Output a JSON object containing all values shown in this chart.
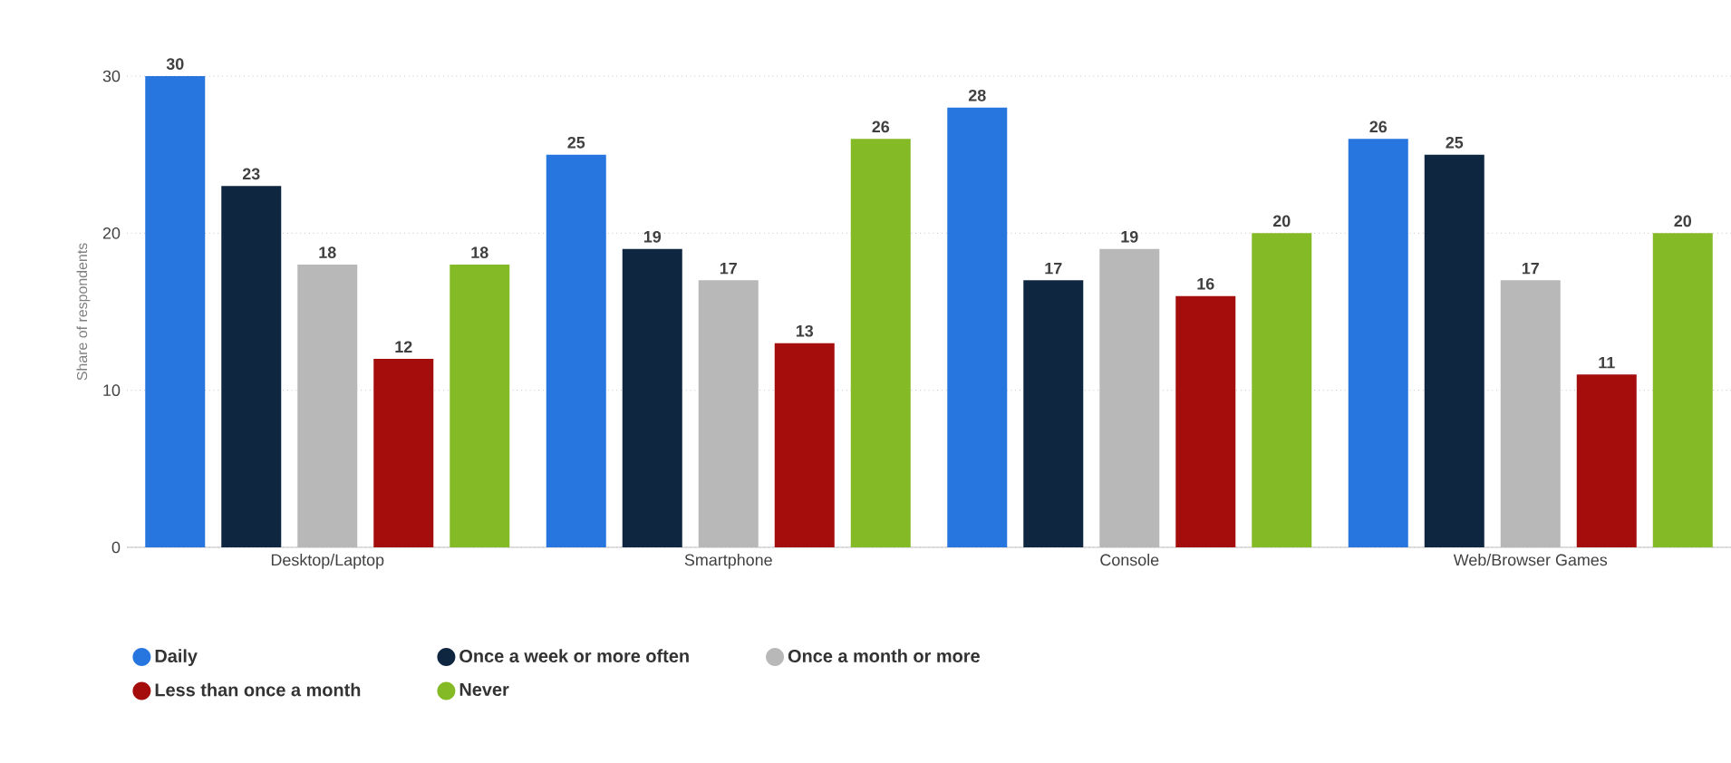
{
  "chart_data": {
    "type": "bar",
    "ylabel": "Share of respondents",
    "categories": [
      "Desktop/Laptop",
      "Smartphone",
      "Console",
      "Web/Browser Games"
    ],
    "series": [
      {
        "name": "Daily",
        "color": "#2776e0",
        "values": [
          30,
          25,
          28,
          26
        ]
      },
      {
        "name": "Once a week or more often",
        "color": "#0f2640",
        "values": [
          23,
          19,
          17,
          25
        ]
      },
      {
        "name": "Once a month or more",
        "color": "#b8b8b8",
        "values": [
          18,
          17,
          19,
          17
        ]
      },
      {
        "name": "Less than once a month",
        "color": "#a50c0c",
        "values": [
          12,
          13,
          16,
          11
        ]
      },
      {
        "name": "Never",
        "color": "#84ba25",
        "values": [
          18,
          26,
          20,
          20
        ]
      }
    ],
    "ylim": [
      0,
      30
    ],
    "yticks": [
      0,
      10,
      20,
      30
    ],
    "grid": "y",
    "legend": "bottom",
    "data_labels": true
  }
}
